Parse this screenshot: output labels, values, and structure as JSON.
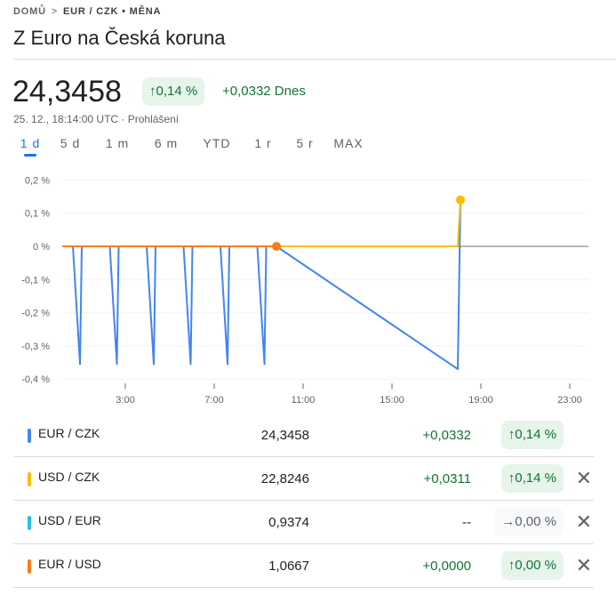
{
  "breadcrumb": {
    "home": "DOMŮ",
    "current": "EUR / CZK • MĚNA"
  },
  "title": "Z Euro na Česká koruna",
  "price": "24,3458",
  "change_pct": "0,14 %",
  "change_abs": "+0,0332 Dnes",
  "timestamp": "25. 12., 18:14:00 UTC · Prohlášení",
  "tabs": [
    "1 d",
    "5 d",
    "1 m",
    "6 m",
    "YTD",
    "1 r",
    "5 r",
    "MAX"
  ],
  "active_tab": "1 d",
  "chart_data": {
    "type": "line",
    "title": "",
    "xlabel": "",
    "ylabel": "",
    "xlim": [
      0,
      24
    ],
    "ylim": [
      -0.4,
      0.2
    ],
    "x_ticks": [
      3,
      7,
      11,
      15,
      19,
      23
    ],
    "x_tick_labels": [
      "3:00",
      "7:00",
      "11:00",
      "15:00",
      "19:00",
      "23:00"
    ],
    "y_ticks": [
      0.2,
      0.1,
      0,
      -0.1,
      -0.2,
      -0.3,
      -0.4
    ],
    "y_tick_labels": [
      "0,2 %",
      "0,1 %",
      "0 %",
      "-0,1 %",
      "-0,2 %",
      "-0,3 %",
      "-0,4 %"
    ],
    "series": [
      {
        "name": "EUR / CZK",
        "color": "#4285f4",
        "points": [
          [
            0.16,
            0
          ],
          [
            0.64,
            0
          ],
          [
            0.96,
            -0.355
          ],
          [
            1.04,
            0
          ],
          [
            2.3,
            0
          ],
          [
            2.62,
            -0.355
          ],
          [
            2.7,
            0
          ],
          [
            3.96,
            0
          ],
          [
            4.28,
            -0.355
          ],
          [
            4.36,
            0
          ],
          [
            5.62,
            0
          ],
          [
            5.94,
            -0.355
          ],
          [
            6.02,
            0
          ],
          [
            7.28,
            0
          ],
          [
            7.6,
            -0.355
          ],
          [
            7.68,
            0
          ],
          [
            8.94,
            0
          ],
          [
            9.26,
            -0.355
          ],
          [
            9.34,
            0
          ],
          [
            9.8,
            0
          ],
          [
            17.96,
            -0.37
          ],
          [
            18.08,
            0.14
          ]
        ]
      },
      {
        "name": "USD / CZK",
        "color": "#fbbc04",
        "points": [
          [
            0.16,
            0
          ],
          [
            17.96,
            0
          ],
          [
            18.08,
            0.14
          ]
        ]
      },
      {
        "name": "EUR / USD",
        "color": "#fa7b17",
        "points": [
          [
            0.16,
            0
          ],
          [
            9.8,
            0
          ]
        ]
      }
    ]
  },
  "rows": [
    {
      "name": "EUR / CZK",
      "color": "#4285f4",
      "price": "24,3458",
      "change": "+0,0332",
      "pct": "↑0,14 %",
      "dir": "up",
      "removable": false
    },
    {
      "name": "USD / CZK",
      "color": "#fbbc04",
      "price": "22,8246",
      "change": "+0,0311",
      "pct": "↑0,14 %",
      "dir": "up",
      "removable": true
    },
    {
      "name": "USD / EUR",
      "color": "#24c1e0",
      "price": "0,9374",
      "change": "--",
      "pct": "→0,00 %",
      "dir": "flat",
      "removable": true
    },
    {
      "name": "EUR / USD",
      "color": "#fa7b17",
      "price": "1,0667",
      "change": "+0,0000",
      "pct": "↑0,00 %",
      "dir": "up",
      "removable": true
    }
  ],
  "remove_icon": "close-icon"
}
